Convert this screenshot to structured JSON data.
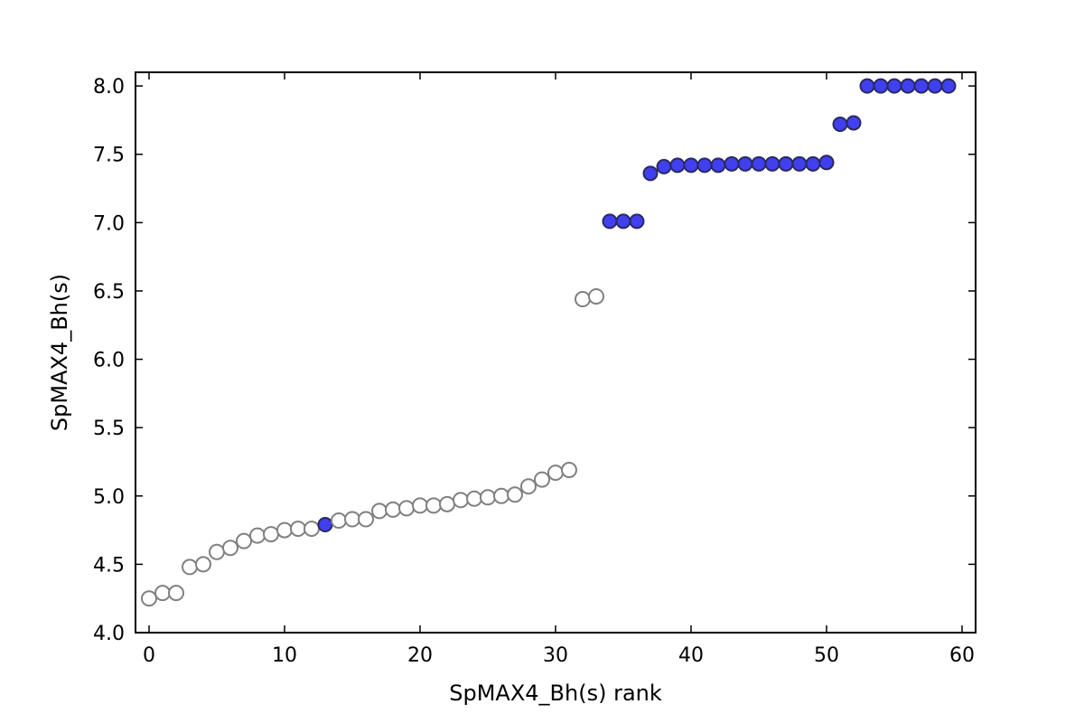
{
  "chart_data": {
    "type": "scatter",
    "title": "",
    "xlabel": "SpMAX4_Bh(s) rank",
    "ylabel": "SpMAX4_Bh(s)",
    "xlim": [
      -1,
      61
    ],
    "ylim": [
      4.0,
      8.1
    ],
    "xticks": [
      0,
      10,
      20,
      30,
      40,
      50,
      60
    ],
    "yticks": [
      4.0,
      4.5,
      5.0,
      5.5,
      6.0,
      6.5,
      7.0,
      7.5,
      8.0
    ],
    "xtick_labels": [
      "0",
      "10",
      "20",
      "30",
      "40",
      "50",
      "60"
    ],
    "ytick_labels": [
      "4.0",
      "4.5",
      "5.0",
      "5.5",
      "6.0",
      "6.5",
      "7.0",
      "7.5",
      "8.0"
    ],
    "grid": false,
    "legend": "none",
    "colors": {
      "filled_face": "#4040f0",
      "filled_edge": "#2a2a60",
      "open_face": "#ffffff",
      "open_edge": "#808080"
    },
    "points": [
      {
        "x": 0,
        "y": 4.25,
        "filled": false
      },
      {
        "x": 1,
        "y": 4.29,
        "filled": false
      },
      {
        "x": 2,
        "y": 4.29,
        "filled": false
      },
      {
        "x": 3,
        "y": 4.48,
        "filled": false
      },
      {
        "x": 4,
        "y": 4.5,
        "filled": false
      },
      {
        "x": 5,
        "y": 4.59,
        "filled": false
      },
      {
        "x": 6,
        "y": 4.62,
        "filled": false
      },
      {
        "x": 7,
        "y": 4.67,
        "filled": false
      },
      {
        "x": 8,
        "y": 4.71,
        "filled": false
      },
      {
        "x": 9,
        "y": 4.72,
        "filled": false
      },
      {
        "x": 10,
        "y": 4.75,
        "filled": false
      },
      {
        "x": 11,
        "y": 4.76,
        "filled": false
      },
      {
        "x": 12,
        "y": 4.76,
        "filled": false
      },
      {
        "x": 13,
        "y": 4.79,
        "filled": true
      },
      {
        "x": 14,
        "y": 4.82,
        "filled": false
      },
      {
        "x": 15,
        "y": 4.83,
        "filled": false
      },
      {
        "x": 16,
        "y": 4.83,
        "filled": false
      },
      {
        "x": 17,
        "y": 4.89,
        "filled": false
      },
      {
        "x": 18,
        "y": 4.9,
        "filled": false
      },
      {
        "x": 19,
        "y": 4.91,
        "filled": false
      },
      {
        "x": 20,
        "y": 4.93,
        "filled": false
      },
      {
        "x": 21,
        "y": 4.93,
        "filled": false
      },
      {
        "x": 22,
        "y": 4.94,
        "filled": false
      },
      {
        "x": 23,
        "y": 4.97,
        "filled": false
      },
      {
        "x": 24,
        "y": 4.98,
        "filled": false
      },
      {
        "x": 25,
        "y": 4.99,
        "filled": false
      },
      {
        "x": 26,
        "y": 5.0,
        "filled": false
      },
      {
        "x": 27,
        "y": 5.01,
        "filled": false
      },
      {
        "x": 28,
        "y": 5.07,
        "filled": false
      },
      {
        "x": 29,
        "y": 5.12,
        "filled": false
      },
      {
        "x": 30,
        "y": 5.17,
        "filled": false
      },
      {
        "x": 31,
        "y": 5.19,
        "filled": false
      },
      {
        "x": 32,
        "y": 6.44,
        "filled": false
      },
      {
        "x": 33,
        "y": 6.46,
        "filled": false
      },
      {
        "x": 34,
        "y": 7.01,
        "filled": true
      },
      {
        "x": 35,
        "y": 7.01,
        "filled": true
      },
      {
        "x": 36,
        "y": 7.01,
        "filled": true
      },
      {
        "x": 37,
        "y": 7.36,
        "filled": true
      },
      {
        "x": 38,
        "y": 7.41,
        "filled": true
      },
      {
        "x": 39,
        "y": 7.42,
        "filled": true
      },
      {
        "x": 40,
        "y": 7.42,
        "filled": true
      },
      {
        "x": 41,
        "y": 7.42,
        "filled": true
      },
      {
        "x": 42,
        "y": 7.42,
        "filled": true
      },
      {
        "x": 43,
        "y": 7.43,
        "filled": true
      },
      {
        "x": 44,
        "y": 7.43,
        "filled": true
      },
      {
        "x": 45,
        "y": 7.43,
        "filled": true
      },
      {
        "x": 46,
        "y": 7.43,
        "filled": true
      },
      {
        "x": 47,
        "y": 7.43,
        "filled": true
      },
      {
        "x": 48,
        "y": 7.43,
        "filled": true
      },
      {
        "x": 49,
        "y": 7.43,
        "filled": true
      },
      {
        "x": 50,
        "y": 7.44,
        "filled": true
      },
      {
        "x": 51,
        "y": 7.72,
        "filled": true
      },
      {
        "x": 52,
        "y": 7.73,
        "filled": true
      },
      {
        "x": 53,
        "y": 8.0,
        "filled": true
      },
      {
        "x": 54,
        "y": 8.0,
        "filled": true
      },
      {
        "x": 55,
        "y": 8.0,
        "filled": true
      },
      {
        "x": 56,
        "y": 8.0,
        "filled": true
      },
      {
        "x": 57,
        "y": 8.0,
        "filled": true
      },
      {
        "x": 58,
        "y": 8.0,
        "filled": true
      },
      {
        "x": 59,
        "y": 8.0,
        "filled": true
      }
    ]
  }
}
